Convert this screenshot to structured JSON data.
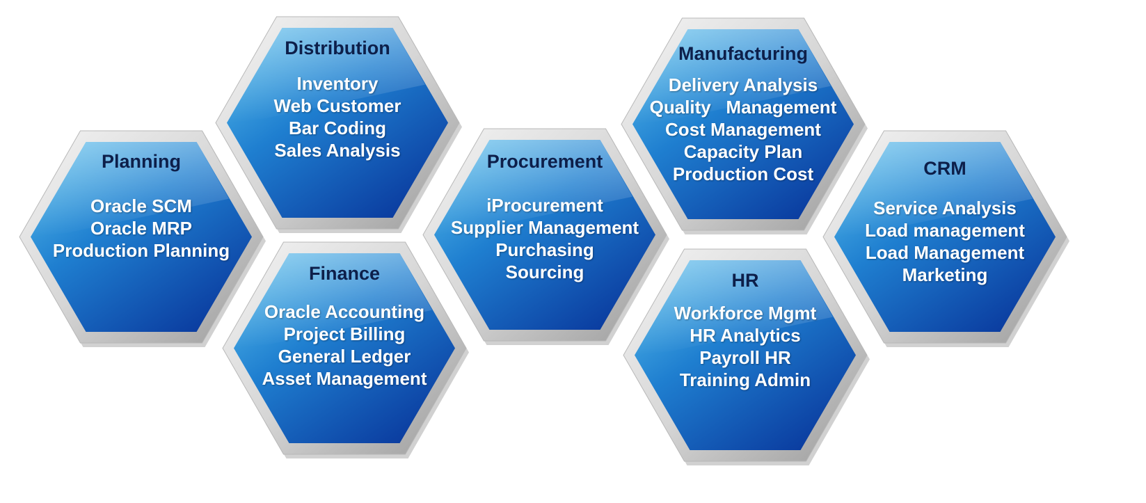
{
  "hexagons": [
    {
      "id": "planning",
      "title": "Planning",
      "items": [
        "Oracle SCM",
        "Oracle MRP",
        "Production Planning"
      ]
    },
    {
      "id": "distribution",
      "title": "Distribution",
      "items": [
        "Inventory",
        "Web Customer",
        "Bar Coding",
        "Sales Analysis"
      ]
    },
    {
      "id": "finance",
      "title": "Finance",
      "items": [
        "Oracle Accounting",
        "Project Billing",
        "General Ledger",
        "Asset Management"
      ]
    },
    {
      "id": "procurement",
      "title": "Procurement",
      "items": [
        "iProcurement",
        "Supplier Management",
        "Purchasing",
        "Sourcing"
      ]
    },
    {
      "id": "manufacturing",
      "title": "Manufacturing",
      "items": [
        "Delivery Analysis",
        "Quality   Management",
        "Cost Management",
        "Capacity Plan",
        "Production Cost"
      ]
    },
    {
      "id": "hr",
      "title": "HR",
      "items": [
        "Workforce Mgmt",
        "HR Analytics",
        "Payroll HR",
        "Training Admin"
      ]
    },
    {
      "id": "crm",
      "title": "CRM",
      "items": [
        "Service Analysis",
        "Load management",
        "Load Management",
        "Marketing"
      ]
    }
  ],
  "colors": {
    "hex_light": "#5ec4ee",
    "hex_mid": "#1f7fd0",
    "hex_dark": "#0a3a9e",
    "frame_light": "#f4f4f4",
    "frame_dark": "#9a9a9a",
    "title_text": "#0d1f4a",
    "item_text": "#ffffff"
  }
}
